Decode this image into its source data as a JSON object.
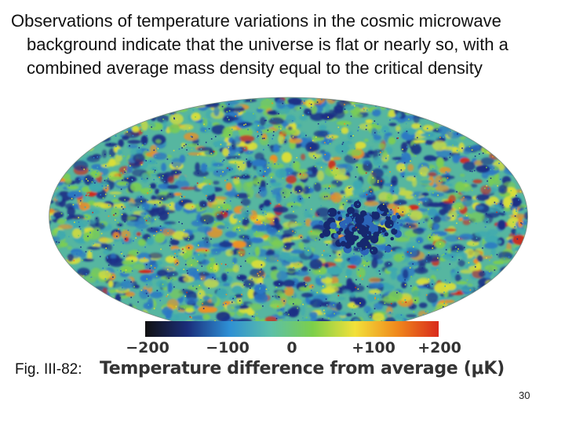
{
  "slide": {
    "heading_line1": "Observations of temperature variations in the cosmic microwave",
    "heading_line2": "background indicate that the universe is flat or nearly so, with a",
    "heading_line3": "combined average mass density equal to the critical density",
    "figure_label": "Fig. III-82:",
    "page_number": "30"
  },
  "figure": {
    "description_name": "cmb-sky-map",
    "colorbar": {
      "ticks": [
        "−200",
        "−100",
        "0",
        "+100",
        "+200"
      ],
      "tick_values": [
        -200,
        -100,
        0,
        100,
        200
      ],
      "min": -200,
      "max": 200,
      "caption_text": "Temperature difference from average (",
      "caption_unit": "μK",
      "caption_close": ")",
      "colors": [
        "#111111",
        "#1a2d7a",
        "#2e8fd4",
        "#5cc0a8",
        "#7ccf4a",
        "#f2e13a",
        "#f08a1c",
        "#d92a1c"
      ]
    }
  }
}
